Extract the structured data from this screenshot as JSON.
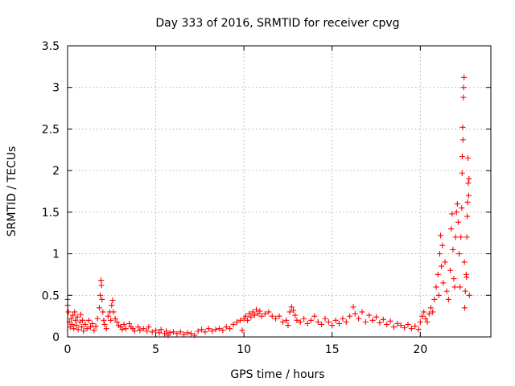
{
  "chart_data": {
    "type": "scatter",
    "title": "Day 333 of 2016, SRMTID for receiver cpvg",
    "xlabel": "GPS time / hours",
    "ylabel": "SRMTID / TECUs",
    "xlim": [
      0,
      24
    ],
    "ylim": [
      0,
      3.5
    ],
    "x_ticks": [
      0,
      5,
      10,
      15,
      20
    ],
    "x_tick_labels": [
      "0",
      "5",
      "10",
      "15",
      "20"
    ],
    "y_ticks": [
      0,
      0.5,
      1,
      1.5,
      2,
      2.5,
      3,
      3.5
    ],
    "y_tick_labels": [
      "0",
      "0.5",
      "1",
      "1.5",
      "2",
      "2.5",
      "3",
      "3.5"
    ],
    "grid": true,
    "marker": "+",
    "marker_color": "#ff0000",
    "series": [
      {
        "name": "SRMTID",
        "points": [
          [
            0.0,
            0.45
          ],
          [
            0.0,
            0.38
          ],
          [
            0.05,
            0.3
          ],
          [
            0.1,
            0.18
          ],
          [
            0.15,
            0.12
          ],
          [
            0.2,
            0.22
          ],
          [
            0.25,
            0.15
          ],
          [
            0.3,
            0.26
          ],
          [
            0.35,
            0.1
          ],
          [
            0.4,
            0.3
          ],
          [
            0.45,
            0.2
          ],
          [
            0.5,
            0.14
          ],
          [
            0.55,
            0.24
          ],
          [
            0.6,
            0.09
          ],
          [
            0.7,
            0.18
          ],
          [
            0.75,
            0.27
          ],
          [
            0.8,
            0.12
          ],
          [
            0.85,
            0.2
          ],
          [
            0.9,
            0.07
          ],
          [
            1.0,
            0.15
          ],
          [
            1.1,
            0.1
          ],
          [
            1.2,
            0.2
          ],
          [
            1.3,
            0.12
          ],
          [
            1.4,
            0.16
          ],
          [
            1.5,
            0.08
          ],
          [
            1.6,
            0.13
          ],
          [
            1.7,
            0.22
          ],
          [
            1.8,
            0.35
          ],
          [
            1.85,
            0.5
          ],
          [
            1.9,
            0.68
          ],
          [
            1.92,
            0.62
          ],
          [
            1.95,
            0.45
          ],
          [
            2.0,
            0.3
          ],
          [
            2.05,
            0.2
          ],
          [
            2.1,
            0.15
          ],
          [
            2.2,
            0.1
          ],
          [
            2.3,
            0.25
          ],
          [
            2.4,
            0.3
          ],
          [
            2.45,
            0.2
          ],
          [
            2.5,
            0.38
          ],
          [
            2.55,
            0.44
          ],
          [
            2.6,
            0.3
          ],
          [
            2.7,
            0.22
          ],
          [
            2.8,
            0.18
          ],
          [
            2.9,
            0.14
          ],
          [
            3.0,
            0.12
          ],
          [
            3.1,
            0.09
          ],
          [
            3.2,
            0.15
          ],
          [
            3.3,
            0.1
          ],
          [
            3.5,
            0.16
          ],
          [
            3.6,
            0.12
          ],
          [
            3.7,
            0.1
          ],
          [
            3.8,
            0.07
          ],
          [
            4.0,
            0.12
          ],
          [
            4.1,
            0.08
          ],
          [
            4.3,
            0.1
          ],
          [
            4.5,
            0.07
          ],
          [
            4.6,
            0.12
          ],
          [
            4.8,
            0.06
          ],
          [
            5.0,
            0.08
          ],
          [
            5.2,
            0.05
          ],
          [
            5.3,
            0.09
          ],
          [
            5.5,
            0.04
          ],
          [
            5.6,
            0.07
          ],
          [
            5.7,
            0.02
          ],
          [
            5.8,
            0.05
          ],
          [
            6.0,
            0.06
          ],
          [
            6.2,
            0.04
          ],
          [
            6.4,
            0.06
          ],
          [
            6.6,
            0.03
          ],
          [
            6.8,
            0.05
          ],
          [
            7.0,
            0.04
          ],
          [
            7.2,
            0.02
          ],
          [
            7.4,
            0.07
          ],
          [
            7.6,
            0.09
          ],
          [
            7.8,
            0.06
          ],
          [
            8.0,
            0.1
          ],
          [
            8.2,
            0.07
          ],
          [
            8.4,
            0.09
          ],
          [
            8.6,
            0.1
          ],
          [
            8.8,
            0.08
          ],
          [
            9.0,
            0.12
          ],
          [
            9.2,
            0.1
          ],
          [
            9.4,
            0.15
          ],
          [
            9.6,
            0.18
          ],
          [
            9.8,
            0.2
          ],
          [
            9.9,
            0.08
          ],
          [
            10.0,
            0.22
          ],
          [
            10.1,
            0.25
          ],
          [
            10.2,
            0.2
          ],
          [
            10.3,
            0.28
          ],
          [
            10.4,
            0.24
          ],
          [
            10.5,
            0.3
          ],
          [
            10.6,
            0.26
          ],
          [
            10.7,
            0.33
          ],
          [
            10.8,
            0.28
          ],
          [
            10.9,
            0.31
          ],
          [
            11.0,
            0.25
          ],
          [
            11.2,
            0.28
          ],
          [
            11.4,
            0.3
          ],
          [
            11.6,
            0.25
          ],
          [
            11.8,
            0.22
          ],
          [
            12.0,
            0.25
          ],
          [
            12.2,
            0.18
          ],
          [
            12.4,
            0.2
          ],
          [
            12.5,
            0.14
          ],
          [
            12.6,
            0.3
          ],
          [
            12.7,
            0.36
          ],
          [
            12.8,
            0.32
          ],
          [
            12.9,
            0.26
          ],
          [
            13.0,
            0.2
          ],
          [
            13.2,
            0.18
          ],
          [
            13.4,
            0.22
          ],
          [
            13.6,
            0.16
          ],
          [
            13.8,
            0.2
          ],
          [
            14.0,
            0.25
          ],
          [
            14.2,
            0.18
          ],
          [
            14.4,
            0.15
          ],
          [
            14.6,
            0.22
          ],
          [
            14.8,
            0.18
          ],
          [
            15.0,
            0.14
          ],
          [
            15.2,
            0.2
          ],
          [
            15.4,
            0.16
          ],
          [
            15.6,
            0.22
          ],
          [
            15.8,
            0.18
          ],
          [
            16.0,
            0.25
          ],
          [
            16.2,
            0.36
          ],
          [
            16.3,
            0.28
          ],
          [
            16.5,
            0.22
          ],
          [
            16.7,
            0.3
          ],
          [
            16.9,
            0.18
          ],
          [
            17.1,
            0.26
          ],
          [
            17.3,
            0.2
          ],
          [
            17.5,
            0.24
          ],
          [
            17.7,
            0.17
          ],
          [
            17.9,
            0.21
          ],
          [
            18.1,
            0.15
          ],
          [
            18.3,
            0.19
          ],
          [
            18.5,
            0.12
          ],
          [
            18.7,
            0.16
          ],
          [
            18.9,
            0.14
          ],
          [
            19.1,
            0.11
          ],
          [
            19.3,
            0.15
          ],
          [
            19.5,
            0.1
          ],
          [
            19.7,
            0.13
          ],
          [
            19.9,
            0.09
          ],
          [
            20.0,
            0.18
          ],
          [
            20.1,
            0.25
          ],
          [
            20.2,
            0.3
          ],
          [
            20.3,
            0.22
          ],
          [
            20.4,
            0.18
          ],
          [
            20.5,
            0.28
          ],
          [
            20.6,
            0.35
          ],
          [
            20.7,
            0.3
          ],
          [
            20.8,
            0.45
          ],
          [
            20.9,
            0.6
          ],
          [
            21.0,
            0.75
          ],
          [
            21.05,
            0.5
          ],
          [
            21.1,
            1.0
          ],
          [
            21.15,
            1.22
          ],
          [
            21.2,
            0.85
          ],
          [
            21.25,
            1.1
          ],
          [
            21.3,
            0.65
          ],
          [
            21.4,
            0.9
          ],
          [
            21.5,
            0.55
          ],
          [
            21.6,
            0.45
          ],
          [
            21.7,
            0.8
          ],
          [
            21.75,
            1.3
          ],
          [
            21.8,
            1.48
          ],
          [
            21.85,
            1.05
          ],
          [
            21.9,
            0.7
          ],
          [
            21.95,
            0.6
          ],
          [
            22.0,
            1.2
          ],
          [
            22.05,
            1.5
          ],
          [
            22.1,
            1.6
          ],
          [
            22.15,
            1.38
          ],
          [
            22.2,
            1.0
          ],
          [
            22.25,
            0.6
          ],
          [
            22.3,
            1.2
          ],
          [
            22.35,
            1.55
          ],
          [
            22.37,
            1.97
          ],
          [
            22.38,
            2.17
          ],
          [
            22.4,
            2.52
          ],
          [
            22.42,
            2.37
          ],
          [
            22.44,
            2.88
          ],
          [
            22.46,
            3.0
          ],
          [
            22.48,
            3.12
          ],
          [
            22.5,
            0.9
          ],
          [
            22.52,
            0.35
          ],
          [
            22.55,
            0.55
          ],
          [
            22.6,
            0.75
          ],
          [
            22.62,
            0.72
          ],
          [
            22.64,
            1.2
          ],
          [
            22.66,
            1.45
          ],
          [
            22.68,
            1.62
          ],
          [
            22.7,
            2.15
          ],
          [
            22.72,
            1.85
          ],
          [
            22.74,
            1.7
          ],
          [
            22.76,
            1.9
          ],
          [
            22.78,
            0.5
          ]
        ]
      }
    ]
  }
}
